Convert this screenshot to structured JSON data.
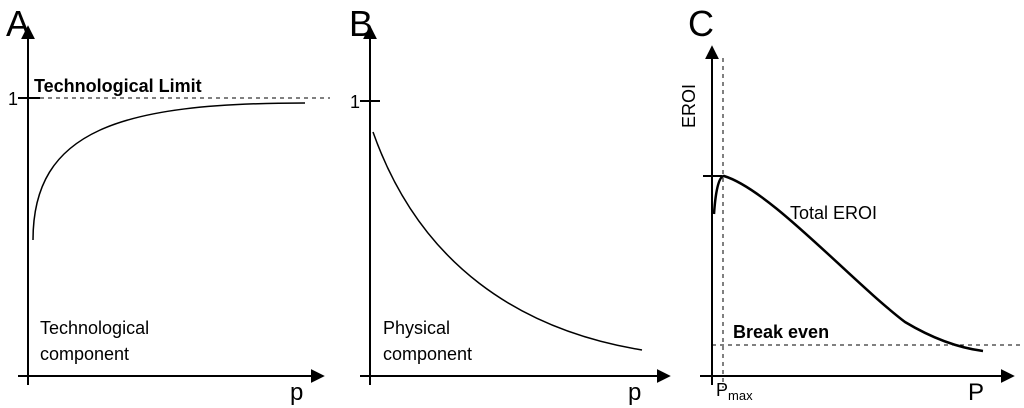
{
  "panels": [
    {
      "letter": "A",
      "x_label": "p",
      "y_tick_label": "1",
      "limit_label": "Technological Limit",
      "component_line1": "Technological",
      "component_line2": "component"
    },
    {
      "letter": "B",
      "x_label": "p",
      "y_tick_label": "1",
      "component_line1": "Physical",
      "component_line2": "component"
    },
    {
      "letter": "C",
      "x_label": "P",
      "y_label": "EROI",
      "curve_label": "Total EROI",
      "break_even_label": "Break even",
      "pmax_label_main": "P",
      "pmax_label_sub": "max"
    }
  ]
}
